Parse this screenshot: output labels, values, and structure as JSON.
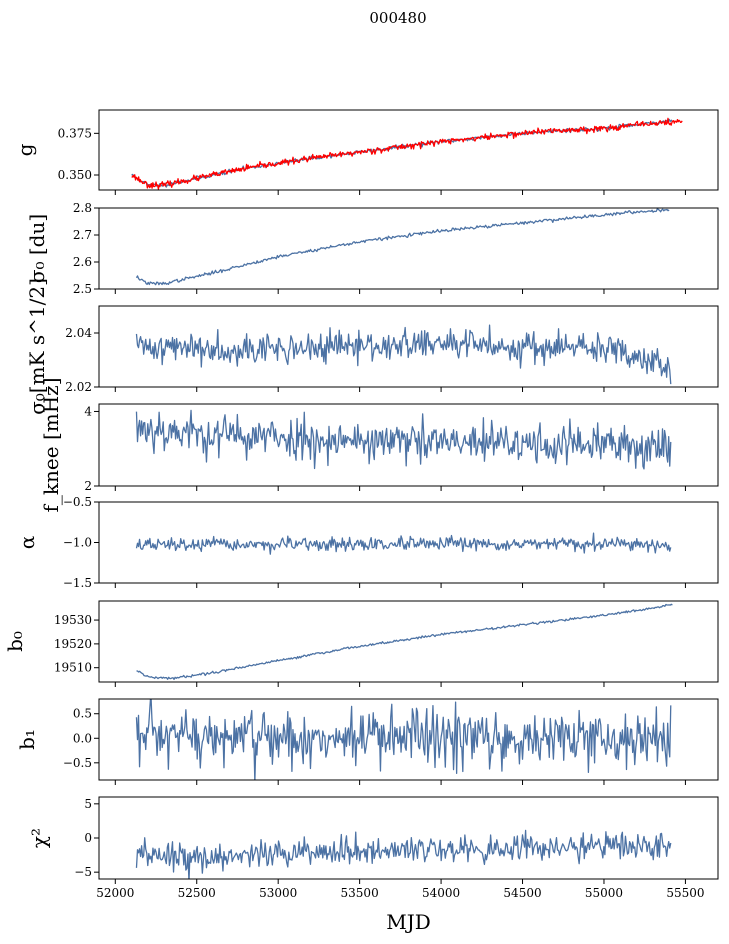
{
  "figure": {
    "suptitle": "000480"
  },
  "colors": {
    "series": "#4c72a4",
    "overlay": "#ff0000"
  },
  "chart_data": [
    {
      "type": "line",
      "ylabel": "g",
      "x_range": [
        52100,
        55420
      ],
      "xlim": [
        51900,
        55700
      ],
      "ylim": [
        0.341,
        0.389
      ],
      "yticks": [
        0.35,
        0.375
      ],
      "ytick_labels": [
        "0.350",
        "0.375"
      ],
      "series": [
        {
          "kind": "noisy",
          "color": "series",
          "x": [
            52100,
            52200,
            52300,
            52500,
            52800,
            53200,
            53600,
            54000,
            54300,
            54600,
            55000,
            55300,
            55420
          ],
          "y": [
            0.35,
            0.344,
            0.344,
            0.348,
            0.354,
            0.36,
            0.365,
            0.37,
            0.373,
            0.376,
            0.378,
            0.381,
            0.383
          ],
          "noise": 0.0006,
          "points": 500,
          "seed": 11
        },
        {
          "kind": "noisy",
          "color": "overlay",
          "x": [
            52100,
            52200,
            52300,
            52500,
            52800,
            53200,
            53600,
            54000,
            54300,
            54600,
            55000,
            55300,
            55480
          ],
          "y": [
            0.35,
            0.344,
            0.344,
            0.348,
            0.354,
            0.36,
            0.365,
            0.37,
            0.373,
            0.376,
            0.378,
            0.381,
            0.382
          ],
          "noise": 0.0009,
          "points": 700,
          "seed": 23
        }
      ]
    },
    {
      "type": "line",
      "ylabel": "σ₀ [du]",
      "x_range": [
        52130,
        55400
      ],
      "xlim": [
        51900,
        55700
      ],
      "ylim": [
        2.5,
        2.8
      ],
      "yticks": [
        2.5,
        2.6,
        2.7,
        2.8
      ],
      "ytick_labels": [
        "2.5",
        "2.6",
        "2.7",
        "2.8"
      ],
      "series": [
        {
          "kind": "noisy",
          "color": "series",
          "x": [
            52130,
            52200,
            52300,
            52600,
            53000,
            53500,
            54000,
            54500,
            55000,
            55400
          ],
          "y": [
            2.545,
            2.52,
            2.52,
            2.56,
            2.62,
            2.675,
            2.715,
            2.745,
            2.775,
            2.795
          ],
          "noise": 0.003,
          "points": 500,
          "seed": 37
        }
      ]
    },
    {
      "type": "line",
      "ylabel": "σ₀[mK s^1/2]",
      "x_range": [
        52130,
        55410
      ],
      "xlim": [
        51900,
        55700
      ],
      "ylim": [
        2.02,
        2.05
      ],
      "yticks": [
        2.02,
        2.04
      ],
      "ytick_labels": [
        "2.02",
        "2.04"
      ],
      "series": [
        {
          "kind": "noisy",
          "color": "series",
          "x": [
            52130,
            53000,
            54000,
            55000,
            55300,
            55410
          ],
          "y": [
            2.035,
            2.034,
            2.036,
            2.034,
            2.031,
            2.026
          ],
          "noise": 0.0028,
          "points": 520,
          "seed": 41
        }
      ]
    },
    {
      "type": "line",
      "ylabel": "f_knee [mHz]",
      "x_range": [
        52130,
        55410
      ],
      "xlim": [
        51900,
        55700
      ],
      "ylim": [
        2.0,
        4.2
      ],
      "yticks": [
        2,
        4
      ],
      "ytick_labels": [
        "2",
        "4"
      ],
      "series": [
        {
          "kind": "noisy",
          "color": "series",
          "x": [
            52130,
            52500,
            53000,
            54000,
            55000,
            55410
          ],
          "y": [
            3.6,
            3.4,
            3.3,
            3.15,
            3.1,
            3.05
          ],
          "noise": 0.28,
          "points": 520,
          "seed": 53
        }
      ]
    },
    {
      "type": "line",
      "ylabel": "α",
      "x_range": [
        52130,
        55410
      ],
      "xlim": [
        51900,
        55700
      ],
      "ylim": [
        -1.5,
        -0.5
      ],
      "yticks": [
        -1.5,
        -1.0,
        -0.5
      ],
      "ytick_labels": [
        "−1.5",
        "−1.0",
        "−0.5"
      ],
      "series": [
        {
          "kind": "noisy",
          "color": "series",
          "x": [
            52130,
            55410
          ],
          "y": [
            -1.03,
            -1.02
          ],
          "noise": 0.04,
          "points": 520,
          "seed": 67
        }
      ]
    },
    {
      "type": "line",
      "ylabel": "b₀",
      "x_range": [
        52130,
        55420
      ],
      "xlim": [
        51900,
        55700
      ],
      "ylim": [
        19504,
        19538
      ],
      "yticks": [
        19510,
        19520,
        19530
      ],
      "ytick_labels": [
        "19510",
        "19520",
        "19530"
      ],
      "series": [
        {
          "kind": "noisy",
          "color": "series",
          "x": [
            52130,
            52200,
            52350,
            52600,
            53000,
            53500,
            54000,
            54500,
            55000,
            55300,
            55420
          ],
          "y": [
            19509,
            19506,
            19505.5,
            19508,
            19513,
            19519,
            19524,
            19528,
            19532,
            19535,
            19536.5
          ],
          "noise": 0.25,
          "points": 500,
          "seed": 79
        }
      ]
    },
    {
      "type": "line",
      "ylabel": "b₁",
      "x_range": [
        52130,
        55410
      ],
      "xlim": [
        51900,
        55700
      ],
      "ylim": [
        -0.85,
        0.8
      ],
      "yticks": [
        -0.5,
        0.0,
        0.5
      ],
      "ytick_labels": [
        "−0.5",
        "0.0",
        "0.5"
      ],
      "series": [
        {
          "kind": "noisy",
          "color": "series",
          "x": [
            52130,
            55410
          ],
          "y": [
            0.0,
            0.0
          ],
          "noise": 0.3,
          "points": 520,
          "seed": 97
        }
      ]
    },
    {
      "type": "line",
      "ylabel": "χ²",
      "xlabel": "MJD",
      "x_range": [
        52130,
        55410
      ],
      "xlim": [
        51900,
        55700
      ],
      "ylim": [
        -6,
        6
      ],
      "yticks": [
        -5,
        0,
        5
      ],
      "ytick_labels": [
        "−5",
        "0",
        "5"
      ],
      "xticks": [
        52000,
        52500,
        53000,
        53500,
        54000,
        54500,
        55000,
        55500
      ],
      "xtick_labels": [
        "52000",
        "52500",
        "53000",
        "53500",
        "54000",
        "54500",
        "55000",
        "55500"
      ],
      "series": [
        {
          "kind": "noisy",
          "color": "series",
          "x": [
            52130,
            52400,
            53000,
            54000,
            55000,
            55410
          ],
          "y": [
            -2.8,
            -3.0,
            -2.2,
            -1.6,
            -1.2,
            -1.0
          ],
          "noise": 1.0,
          "points": 520,
          "seed": 113
        }
      ]
    }
  ]
}
